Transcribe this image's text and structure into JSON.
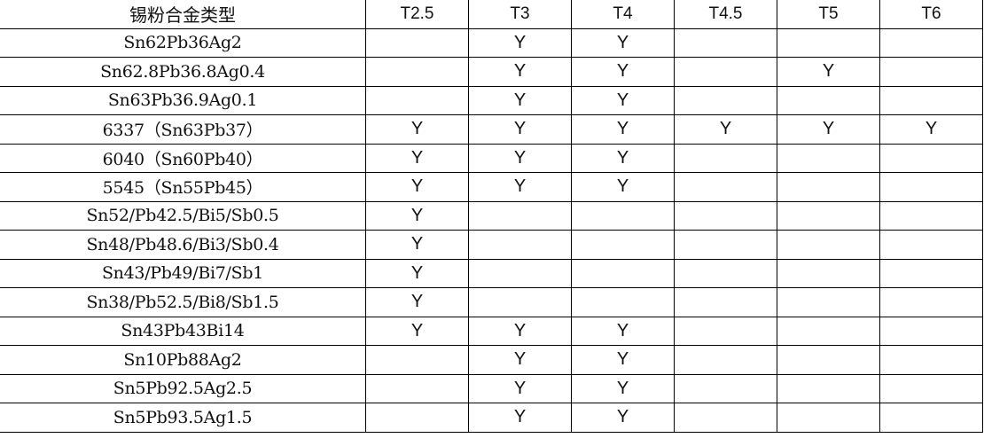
{
  "table": {
    "headers": [
      "锡粉合金类型",
      "T2.5",
      "T3",
      "T4",
      "T4.5",
      "T5",
      "T6"
    ],
    "rows": [
      {
        "name": "Sn62Pb36Ag2",
        "cells": [
          "",
          "Y",
          "Y",
          "",
          "",
          ""
        ]
      },
      {
        "name": "Sn62.8Pb36.8Ag0.4",
        "cells": [
          "",
          "Y",
          "Y",
          "",
          "Y",
          ""
        ]
      },
      {
        "name": "Sn63Pb36.9Ag0.1",
        "cells": [
          "",
          "Y",
          "Y",
          "",
          "",
          ""
        ]
      },
      {
        "name": "6337（Sn63Pb37）",
        "cells": [
          "Y",
          "Y",
          "Y",
          "Y",
          "Y",
          "Y"
        ]
      },
      {
        "name": "6040（Sn60Pb40）",
        "cells": [
          "Y",
          "Y",
          "Y",
          "",
          "",
          ""
        ]
      },
      {
        "name": "5545（Sn55Pb45）",
        "cells": [
          "Y",
          "Y",
          "Y",
          "",
          "",
          ""
        ]
      },
      {
        "name": "Sn52/Pb42.5/Bi5/Sb0.5",
        "cells": [
          "Y",
          "",
          "",
          "",
          "",
          ""
        ]
      },
      {
        "name": "Sn48/Pb48.6/Bi3/Sb0.4",
        "cells": [
          "Y",
          "",
          "",
          "",
          "",
          ""
        ]
      },
      {
        "name": "Sn43/Pb49/Bi7/Sb1",
        "cells": [
          "Y",
          "",
          "",
          "",
          "",
          ""
        ]
      },
      {
        "name": "Sn38/Pb52.5/Bi8/Sb1.5",
        "cells": [
          "Y",
          "",
          "",
          "",
          "",
          ""
        ]
      },
      {
        "name": "Sn43Pb43Bi14",
        "cells": [
          "Y",
          "Y",
          "Y",
          "",
          "",
          ""
        ]
      },
      {
        "name": "Sn10Pb88Ag2",
        "cells": [
          "",
          "Y",
          "Y",
          "",
          "",
          ""
        ]
      },
      {
        "name": "Sn5Pb92.5Ag2.5",
        "cells": [
          "",
          "Y",
          "Y",
          "",
          "",
          ""
        ]
      },
      {
        "name": "Sn5Pb93.5Ag1.5",
        "cells": [
          "",
          "Y",
          "Y",
          "",
          "",
          ""
        ]
      }
    ]
  }
}
